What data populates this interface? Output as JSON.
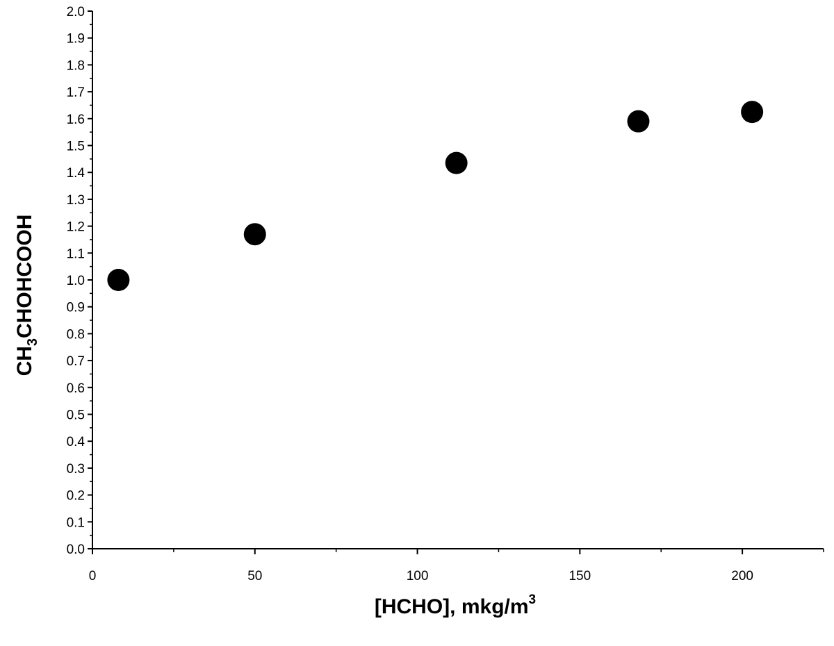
{
  "chart_data": {
    "type": "scatter",
    "title": "",
    "xlabel": {
      "main": "[HCHO], mkg/m",
      "sup": "3"
    },
    "ylabel": {
      "pre": "CH",
      "sub": "3",
      "post": "CHOHCOOH"
    },
    "xlim": [
      0,
      225
    ],
    "ylim": [
      0.0,
      2.0
    ],
    "x_ticks": [
      0,
      50,
      100,
      150,
      200
    ],
    "x_tick_labels": [
      "0",
      "50",
      "100",
      "150",
      "200"
    ],
    "x_minor_ticks": [
      25,
      75,
      125,
      175,
      225
    ],
    "y_ticks": [
      0.0,
      0.1,
      0.2,
      0.3,
      0.4,
      0.5,
      0.6,
      0.7,
      0.8,
      0.9,
      1.0,
      1.1,
      1.2,
      1.3,
      1.4,
      1.5,
      1.6,
      1.7,
      1.8,
      1.9,
      2.0
    ],
    "y_tick_labels": [
      "0.0",
      "0.1",
      "0.2",
      "0.3",
      "0.4",
      "0.5",
      "0.6",
      "0.7",
      "0.8",
      "0.9",
      "1.0",
      "1.1",
      "1.2",
      "1.3",
      "1.4",
      "1.5",
      "1.6",
      "1.7",
      "1.8",
      "1.9",
      "2.0"
    ],
    "grid": false,
    "legend": "none",
    "marker_color": "#000000",
    "series": [
      {
        "x": [
          8,
          50,
          112,
          168,
          203
        ],
        "y": [
          1.0,
          1.17,
          1.435,
          1.59,
          1.625
        ]
      }
    ]
  }
}
